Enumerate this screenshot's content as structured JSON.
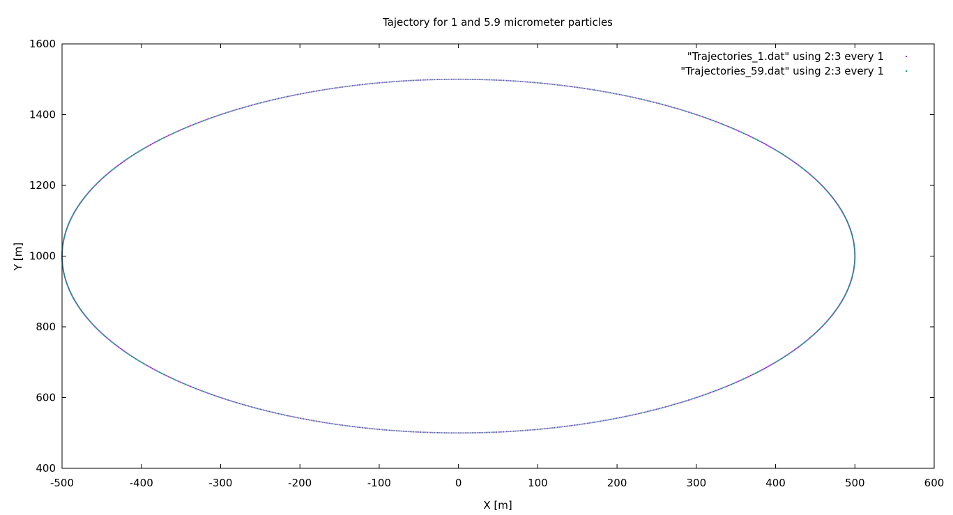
{
  "chart_data": {
    "type": "scatter",
    "title": "Tajectory for 1 and 5.9 micrometer particles",
    "xlabel": "X [m]",
    "ylabel": "Y [m]",
    "xlim": [
      -500,
      600
    ],
    "ylim": [
      400,
      1600
    ],
    "xticks": [
      -500,
      -400,
      -300,
      -200,
      -100,
      0,
      100,
      200,
      300,
      400,
      500,
      600
    ],
    "yticks": [
      400,
      600,
      800,
      1000,
      1200,
      1400,
      1600
    ],
    "grid": false,
    "legend_position": "top-right",
    "series": [
      {
        "name": "\"Trajectories_1.dat\" using 2:3 every 1",
        "color": "#9400d3",
        "shape": "ellipse",
        "center": [
          0,
          1000
        ],
        "radius_x": 500,
        "radius_y": 500,
        "point_count": 720
      },
      {
        "name": "\"Trajectories_59.dat\" using 2:3 every 1",
        "color": "#009e73",
        "shape": "ellipse",
        "center": [
          0,
          1000
        ],
        "radius_x": 500,
        "radius_y": 500,
        "point_count": 720
      }
    ]
  }
}
